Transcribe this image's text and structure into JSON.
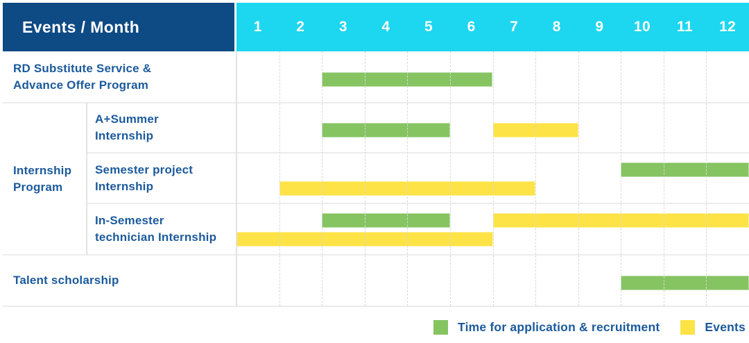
{
  "header": {
    "corner_label": "Events / Month",
    "months": [
      "1",
      "2",
      "3",
      "4",
      "5",
      "6",
      "7",
      "8",
      "9",
      "10",
      "11",
      "12"
    ]
  },
  "group_label": "Internship Program",
  "legend": {
    "items": [
      {
        "key": "recruitment",
        "label": "Time for application & recruitment"
      },
      {
        "key": "event",
        "label": "Events"
      }
    ]
  },
  "colors": {
    "recruitment": "#86c462",
    "event": "#fde345",
    "header_bg": "#0e4a84",
    "months_bg": "#1dd6f0",
    "label_text": "#1b5a9c"
  },
  "chart_data": {
    "type": "table",
    "subtype": "gantt",
    "title": "Events / Month",
    "x_axis": {
      "label": "Month",
      "ticks": [
        1,
        2,
        3,
        4,
        5,
        6,
        7,
        8,
        9,
        10,
        11,
        12
      ],
      "range": [
        1,
        12
      ]
    },
    "grid": true,
    "legend_position": "bottom-right",
    "series": [
      {
        "key": "recruitment",
        "name": "Time for application & recruitment",
        "color": "#86c462"
      },
      {
        "key": "event",
        "name": "Events",
        "color": "#fde345"
      }
    ],
    "rows": [
      {
        "id": "rd-substitute-advance-offer",
        "group": null,
        "label_lines": [
          "RD Substitute Service &",
          "Advance Offer Program"
        ],
        "height": 74,
        "bar_lines": [
          [
            {
              "series": "recruitment",
              "start_month": 3,
              "end_month": 6
            }
          ]
        ]
      },
      {
        "id": "a-plus-summer-internship",
        "group": "Internship Program",
        "label_lines": [
          "A+Summer",
          "Internship"
        ],
        "height": 72,
        "bar_lines": [
          [
            {
              "series": "recruitment",
              "start_month": 3,
              "end_month": 5
            },
            {
              "series": "event",
              "start_month": 7,
              "end_month": 8
            }
          ]
        ]
      },
      {
        "id": "semester-project-internship",
        "group": "Internship Program",
        "label_lines": [
          "Semester project",
          "Internship"
        ],
        "height": 73,
        "bar_lines": [
          [
            {
              "series": "recruitment",
              "start_month": 10,
              "end_month": 12
            }
          ],
          [
            {
              "series": "event",
              "start_month": 2,
              "end_month": 7
            }
          ]
        ]
      },
      {
        "id": "in-semester-technician-internship",
        "group": "Internship Program",
        "label_lines": [
          "In-Semester",
          "technician Internship"
        ],
        "height": 74,
        "bar_lines": [
          [
            {
              "series": "recruitment",
              "start_month": 3,
              "end_month": 5
            },
            {
              "series": "event",
              "start_month": 7,
              "end_month": 12
            }
          ],
          [
            {
              "series": "event",
              "start_month": 1,
              "end_month": 6
            }
          ]
        ]
      },
      {
        "id": "talent-scholarship",
        "group": null,
        "label_lines": [
          "Talent scholarship"
        ],
        "height": 74,
        "bar_lines": [
          [
            {
              "series": "recruitment",
              "start_month": 10,
              "end_month": 12
            }
          ]
        ]
      }
    ]
  }
}
